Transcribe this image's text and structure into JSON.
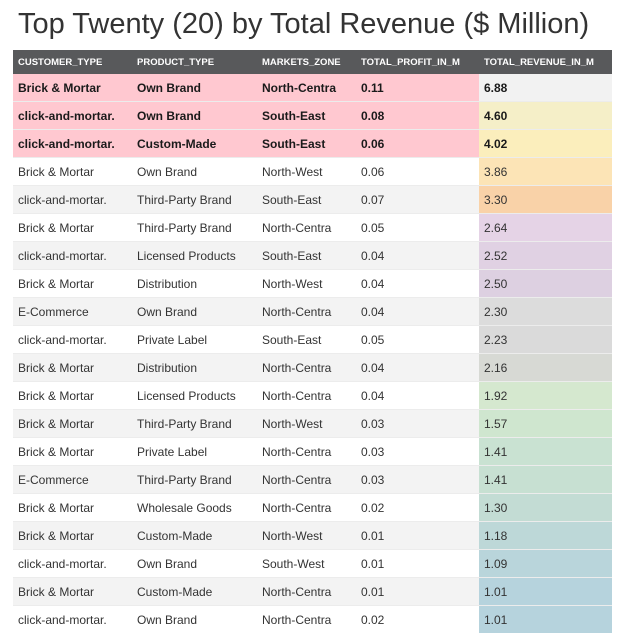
{
  "title": "Top Twenty (20) by Total Revenue ($ Million)",
  "colors": {
    "header_bg": "#58595b",
    "highlight_row": "#ffc8d0"
  },
  "chart_data": {
    "type": "table",
    "title": "Top Twenty (20) by Total Revenue ($ Million)",
    "columns": [
      "CUSTOMER_TYPE",
      "PRODUCT_TYPE",
      "MARKETS_ZONE",
      "TOTAL_PROFIT_IN_M",
      "TOTAL_REVENUE_IN_M"
    ],
    "highlighted_rows": [
      0,
      1,
      2
    ],
    "rows": [
      {
        "customer_type": "Brick & Mortar",
        "product_type": "Own Brand",
        "markets_zone": "North-Centra",
        "profit": "0.11",
        "revenue": "6.88",
        "revenue_color": "#f2f2f2"
      },
      {
        "customer_type": "click-and-mortar.",
        "product_type": "Own Brand",
        "markets_zone": "South-East",
        "profit": "0.08",
        "revenue": "4.60",
        "revenue_color": "#f5efc8"
      },
      {
        "customer_type": "click-and-mortar.",
        "product_type": "Custom-Made",
        "markets_zone": "South-East",
        "profit": "0.06",
        "revenue": "4.02",
        "revenue_color": "#fbeebc"
      },
      {
        "customer_type": "Brick & Mortar",
        "product_type": "Own Brand",
        "markets_zone": "North-West",
        "profit": "0.06",
        "revenue": "3.86",
        "revenue_color": "#fce4b6"
      },
      {
        "customer_type": "click-and-mortar.",
        "product_type": "Third-Party Brand",
        "markets_zone": "South-East",
        "profit": "0.07",
        "revenue": "3.30",
        "revenue_color": "#f9d2a8"
      },
      {
        "customer_type": "Brick & Mortar",
        "product_type": "Third-Party Brand",
        "markets_zone": "North-Centra",
        "profit": "0.05",
        "revenue": "2.64",
        "revenue_color": "#e5d3e6"
      },
      {
        "customer_type": "click-and-mortar.",
        "product_type": "Licensed Products",
        "markets_zone": "South-East",
        "profit": "0.04",
        "revenue": "2.52",
        "revenue_color": "#e0d1e3"
      },
      {
        "customer_type": "Brick & Mortar",
        "product_type": "Distribution",
        "markets_zone": "North-West",
        "profit": "0.04",
        "revenue": "2.50",
        "revenue_color": "#ddd0e1"
      },
      {
        "customer_type": "E-Commerce",
        "product_type": "Own Brand",
        "markets_zone": "North-Centra",
        "profit": "0.04",
        "revenue": "2.30",
        "revenue_color": "#dcdcdc"
      },
      {
        "customer_type": "click-and-mortar.",
        "product_type": "Private Label",
        "markets_zone": "South-East",
        "profit": "0.05",
        "revenue": "2.23",
        "revenue_color": "#dadada"
      },
      {
        "customer_type": "Brick & Mortar",
        "product_type": "Distribution",
        "markets_zone": "North-Centra",
        "profit": "0.04",
        "revenue": "2.16",
        "revenue_color": "#d7d9d4"
      },
      {
        "customer_type": "Brick & Mortar",
        "product_type": "Licensed Products",
        "markets_zone": "North-Centra",
        "profit": "0.04",
        "revenue": "1.92",
        "revenue_color": "#d5e8cf"
      },
      {
        "customer_type": "Brick & Mortar",
        "product_type": "Third-Party Brand",
        "markets_zone": "North-West",
        "profit": "0.03",
        "revenue": "1.57",
        "revenue_color": "#cfe6cf"
      },
      {
        "customer_type": "Brick & Mortar",
        "product_type": "Private Label",
        "markets_zone": "North-Centra",
        "profit": "0.03",
        "revenue": "1.41",
        "revenue_color": "#c9e2d2"
      },
      {
        "customer_type": "E-Commerce",
        "product_type": "Third-Party Brand",
        "markets_zone": "North-Centra",
        "profit": "0.03",
        "revenue": "1.41",
        "revenue_color": "#c7e0d2"
      },
      {
        "customer_type": "Brick & Mortar",
        "product_type": "Wholesale Goods",
        "markets_zone": "North-Centra",
        "profit": "0.02",
        "revenue": "1.30",
        "revenue_color": "#c3dcd4"
      },
      {
        "customer_type": "Brick & Mortar",
        "product_type": "Custom-Made",
        "markets_zone": "North-West",
        "profit": "0.01",
        "revenue": "1.18",
        "revenue_color": "#bdd8d8"
      },
      {
        "customer_type": "click-and-mortar.",
        "product_type": "Own Brand",
        "markets_zone": "South-West",
        "profit": "0.01",
        "revenue": "1.09",
        "revenue_color": "#b9d5db"
      },
      {
        "customer_type": "Brick & Mortar",
        "product_type": "Custom-Made",
        "markets_zone": "North-Centra",
        "profit": "0.01",
        "revenue": "1.01",
        "revenue_color": "#b6d3dd"
      },
      {
        "customer_type": "click-and-mortar.",
        "product_type": "Own Brand",
        "markets_zone": "North-Centra",
        "profit": "0.02",
        "revenue": "1.01",
        "revenue_color": "#b6d3dd"
      }
    ]
  }
}
